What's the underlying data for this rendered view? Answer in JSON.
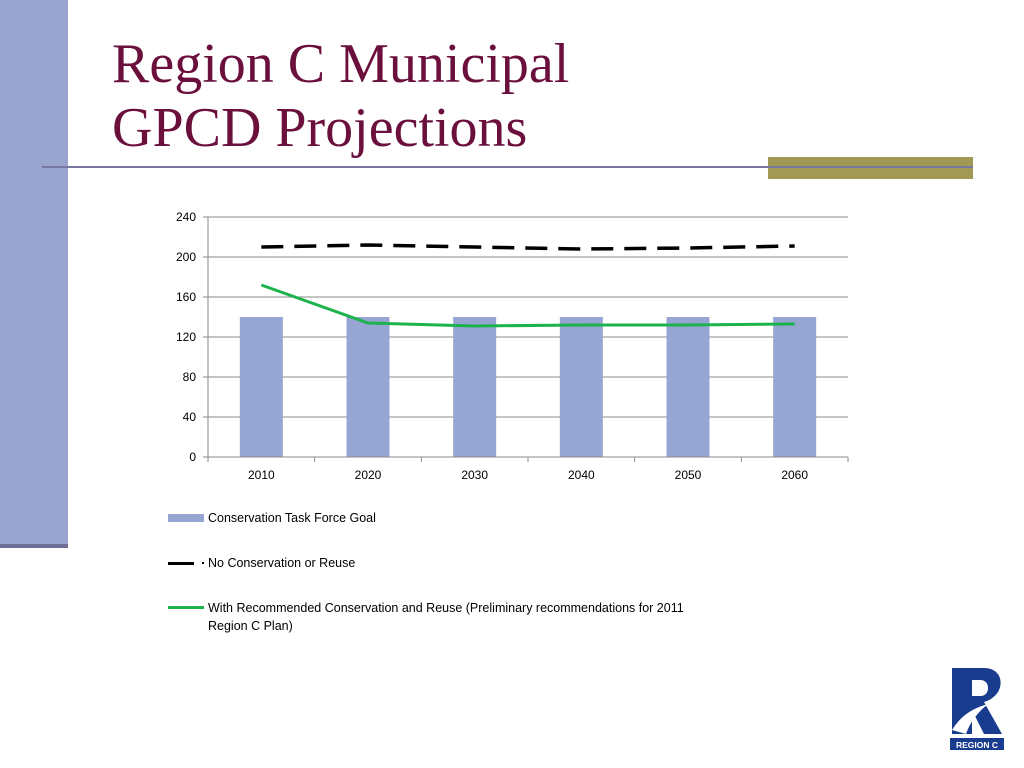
{
  "slide": {
    "title_line1": "Region C Municipal",
    "title_line2": "GPCD Projections"
  },
  "colors": {
    "title": "#6b0f3d",
    "left_bar": "#99a4cf",
    "accent": "#a09a55",
    "bar": "#97a5d3",
    "no_conservation_line": "#000000",
    "recommended_line": "#1db34c",
    "logo_blue": "#1a3c8f"
  },
  "chart_data": {
    "type": "bar",
    "categories": [
      "2010",
      "2020",
      "2030",
      "2040",
      "2050",
      "2060"
    ],
    "ylim": [
      0,
      240
    ],
    "yticks": [
      "0",
      "40",
      "80",
      "120",
      "160",
      "200",
      "240"
    ],
    "grid": true,
    "legend_position": "bottom",
    "series": [
      {
        "name": "Conservation Task Force Goal",
        "type": "bar",
        "values": [
          140,
          140,
          140,
          140,
          140,
          140
        ]
      },
      {
        "name": "No Conservation or Reuse",
        "type": "line",
        "style": "dashed",
        "values": [
          210,
          212,
          210,
          208,
          209,
          211
        ]
      },
      {
        "name": "With Recommended Conservation and Reuse (Preliminary recommendations for 2011 Region C Plan)",
        "type": "line",
        "style": "solid",
        "values": [
          172,
          134,
          131,
          132,
          132,
          133
        ]
      }
    ]
  },
  "logo": {
    "letter": "R",
    "caption": "REGION C",
    "icon": "region-c-logo-icon"
  }
}
